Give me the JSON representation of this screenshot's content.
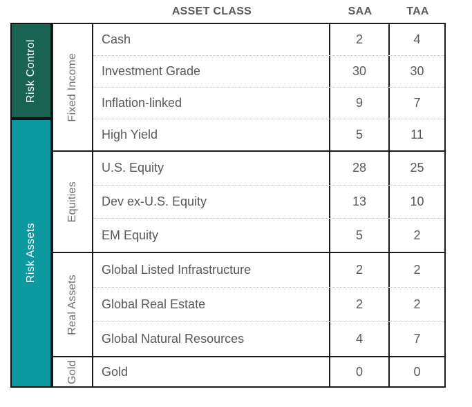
{
  "header": {
    "asset_class_label": "ASSET CLASS",
    "saa_label": "SAA",
    "taa_label": "TAA"
  },
  "categories": [
    {
      "label": "Risk Control",
      "color": "#186351"
    },
    {
      "label": "Risk Assets",
      "color": "#0D99A0"
    }
  ],
  "groups": [
    {
      "label": "Fixed Income",
      "rows": [
        {
          "name": "Cash",
          "saa": "2",
          "taa": "4"
        },
        {
          "name": "Investment Grade",
          "saa": "30",
          "taa": "30"
        },
        {
          "name": "Inflation-linked",
          "saa": "9",
          "taa": "7"
        },
        {
          "name": "High Yield",
          "saa": "5",
          "taa": "11"
        }
      ]
    },
    {
      "label": "Equities",
      "rows": [
        {
          "name": "U.S. Equity",
          "saa": "28",
          "taa": "25"
        },
        {
          "name": "Dev ex-U.S. Equity",
          "saa": "13",
          "taa": "10"
        },
        {
          "name": "EM Equity",
          "saa": "5",
          "taa": "2"
        }
      ]
    },
    {
      "label": "Real Assets",
      "rows": [
        {
          "name": "Global Listed Infrastructure",
          "saa": "2",
          "taa": "2"
        },
        {
          "name": "Global Real Estate",
          "saa": "2",
          "taa": "2"
        },
        {
          "name": "Global Natural Resources",
          "saa": "4",
          "taa": "7"
        }
      ]
    },
    {
      "label": "Gold",
      "rows": [
        {
          "name": "Gold",
          "saa": "0",
          "taa": "0"
        }
      ]
    }
  ],
  "colors": {
    "risk_control_green": "#186351",
    "risk_assets_teal": "#0D99A0",
    "text_gray": "#58595B",
    "border_black": "#1A1A1A",
    "dotted_separator_gray": "#C4C4C4"
  }
}
